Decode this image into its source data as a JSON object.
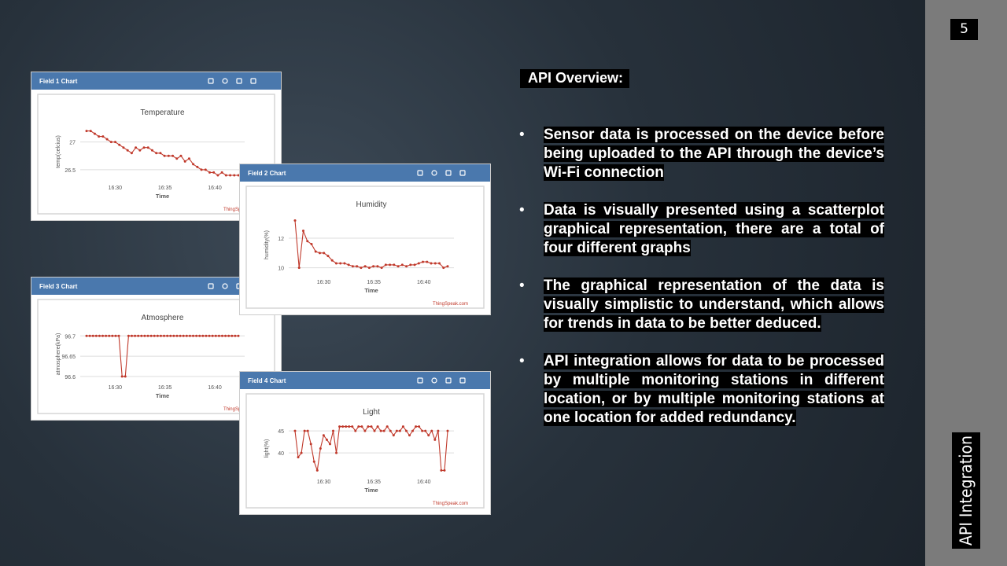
{
  "slide_number": "5",
  "heading": "API Overview:",
  "bullets": [
    "Sensor data is processed on the device before being uploaded to the API through the device’s Wi-Fi connection",
    "Data is visually presented using a scatterplot graphical representation, there are a total of four different graphs",
    "The graphical representation of the data is visually simplistic to understand, which allows for trends in data to be better deduced.",
    "API integration allows for data to be processed by multiple monitoring stations in different location, or by multiple monitoring stations at one location for added redundancy."
  ],
  "side_label": "API Integration",
  "chart_data": [
    {
      "type": "line",
      "window_title": "Field 1 Chart",
      "title": "Temperature",
      "y_label": "temp(celcius)",
      "x_label": "Time",
      "xtick_labels": [
        "16:30",
        "16:35",
        "16:40"
      ],
      "credit": "ThingSpeak.com",
      "color": "#c0392b",
      "grid": true,
      "ylim": [
        26.3,
        27.35
      ],
      "yticks": [
        27,
        26.5
      ],
      "values": [
        27.2,
        27.2,
        27.15,
        27.1,
        27.1,
        27.05,
        27.0,
        27.0,
        26.95,
        26.9,
        26.85,
        26.8,
        26.9,
        26.85,
        26.9,
        26.9,
        26.85,
        26.8,
        26.8,
        26.75,
        26.75,
        26.75,
        26.7,
        26.75,
        26.65,
        26.7,
        26.6,
        26.55,
        26.5,
        26.5,
        26.45,
        26.45,
        26.4,
        26.45,
        26.4,
        26.4,
        26.4,
        26.4
      ]
    },
    {
      "type": "line",
      "window_title": "Field 2 Chart",
      "title": "Humidity",
      "y_label": "humidity(%)",
      "x_label": "Time",
      "xtick_labels": [
        "16:30",
        "16:35",
        "16:40"
      ],
      "credit": "ThingSpeak.com",
      "color": "#c0392b",
      "grid": true,
      "ylim": [
        9.5,
        13.6
      ],
      "yticks": [
        12,
        10
      ],
      "values": [
        13.2,
        10,
        12.5,
        11.8,
        11.6,
        11.1,
        11,
        11,
        10.8,
        10.5,
        10.3,
        10.3,
        10.3,
        10.2,
        10.1,
        10.1,
        10.0,
        10.1,
        10.0,
        10.1,
        10.1,
        10.0,
        10.2,
        10.2,
        10.2,
        10.1,
        10.2,
        10.1,
        10.2,
        10.2,
        10.3,
        10.4,
        10.4,
        10.3,
        10.3,
        10.3,
        10.0,
        10.1
      ]
    },
    {
      "type": "line",
      "window_title": "Field 3 Chart",
      "title": "Atmosphere",
      "y_label": "atmosphere(kPa)",
      "x_label": "Time",
      "xtick_labels": [
        "16:30",
        "16:35",
        "16:40"
      ],
      "credit": "ThingSpeak.com",
      "color": "#c0392b",
      "grid": true,
      "ylim": [
        96.59,
        96.72
      ],
      "yticks": [
        96.7,
        96.65,
        96.6
      ],
      "values": [
        96.7,
        96.7,
        96.7,
        96.7,
        96.7,
        96.7,
        96.7,
        96.7,
        96.7,
        96.7,
        96.7,
        96.6,
        96.6,
        96.7,
        96.7,
        96.7,
        96.7,
        96.7,
        96.7,
        96.7,
        96.7,
        96.7,
        96.7,
        96.7,
        96.7,
        96.7,
        96.7,
        96.7,
        96.7,
        96.7,
        96.7,
        96.7,
        96.7,
        96.7,
        96.7,
        96.7,
        96.7,
        96.7,
        96.7,
        96.7,
        96.7,
        96.7,
        96.7,
        96.7,
        96.7,
        96.7,
        96.7,
        96.7
      ]
    },
    {
      "type": "line",
      "window_title": "Field 4 Chart",
      "title": "Light",
      "y_label": "light(%)",
      "x_label": "Time",
      "xtick_labels": [
        "16:30",
        "16:35",
        "16:40"
      ],
      "credit": "ThingSpeak.com",
      "color": "#c0392b",
      "grid": true,
      "ylim": [
        35,
        47
      ],
      "yticks": [
        45,
        40
      ],
      "values": [
        45,
        39,
        40,
        45,
        45,
        42,
        38,
        36,
        41,
        44,
        43,
        42,
        45,
        40,
        46,
        46,
        46,
        46,
        46,
        45,
        46,
        46,
        45,
        46,
        46,
        45,
        46,
        45,
        45,
        46,
        45,
        44,
        45,
        45,
        46,
        45,
        44,
        45,
        46,
        46,
        45,
        45,
        44,
        45,
        43,
        45,
        36,
        36,
        45
      ]
    }
  ]
}
